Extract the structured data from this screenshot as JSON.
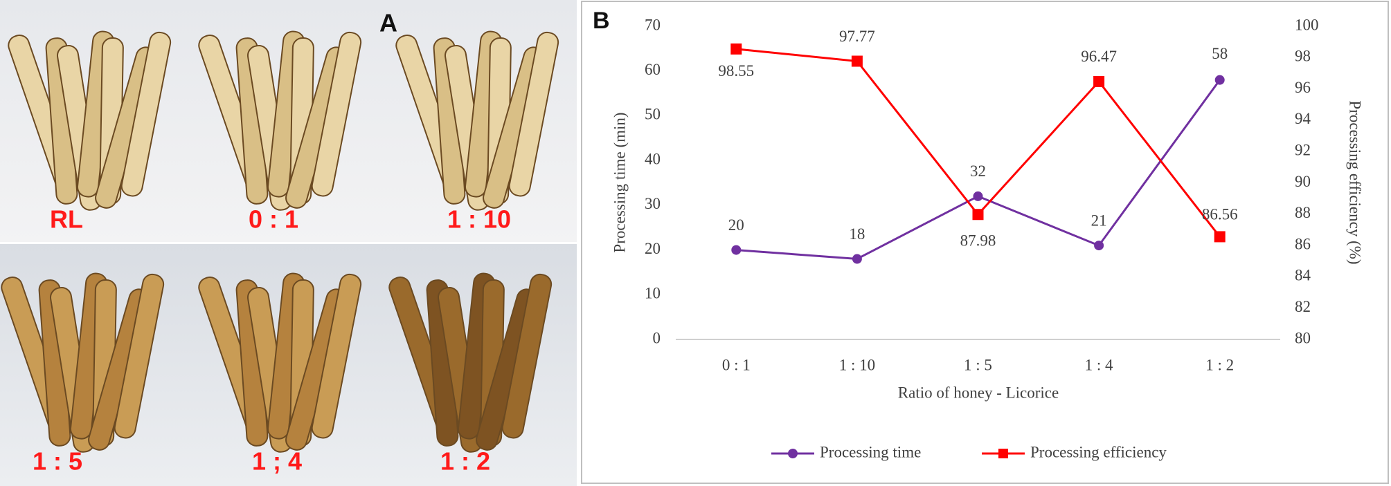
{
  "panels": {
    "a": "A",
    "b": "B"
  },
  "photos": {
    "labels": [
      "RL",
      "0 : 1",
      "1 : 10",
      "1 : 5",
      "1 ; 4",
      "1 : 2"
    ]
  },
  "chart_data": {
    "type": "line",
    "xlabel": "Ratio of honey - Licorice",
    "ylabel": "Processing time (min)",
    "y2label": "Processing efficiency (%)",
    "categories": [
      "0 : 1",
      "1 : 10",
      "1 : 5",
      "1 : 4",
      "1 : 2"
    ],
    "ylim": [
      0,
      70
    ],
    "yticks": [
      0,
      10,
      20,
      30,
      40,
      50,
      60,
      70
    ],
    "y2lim": [
      80,
      100
    ],
    "y2ticks": [
      80,
      82,
      84,
      86,
      88,
      90,
      92,
      94,
      96,
      98,
      100
    ],
    "grid": false,
    "legend": "bottom",
    "series": [
      {
        "name": "Processing time",
        "color": "#7030a0",
        "marker": "circle",
        "values": [
          20,
          18,
          32,
          21,
          58
        ]
      },
      {
        "name": "Processing efficiency",
        "color": "#ff0000",
        "marker": "square",
        "axis": "y2",
        "values": [
          98.55,
          97.77,
          87.98,
          96.47,
          86.56
        ]
      }
    ]
  }
}
